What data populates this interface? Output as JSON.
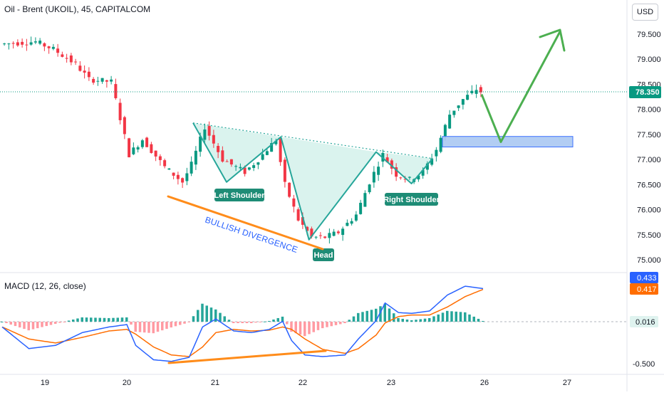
{
  "header": {
    "symbol_title": "Oil - Brent (UKOIL), 45, CAPITALCOM",
    "currency_button": "USD"
  },
  "colors": {
    "up": "#089981",
    "down": "#f23645",
    "pattern": "#26a69a",
    "pattern_fill": "#d4f1eb",
    "divergence": "#ff8c1a",
    "macd_line": "#2962ff",
    "signal_line": "#ff6d00",
    "hist_up": "#26a69a",
    "hist_down": "#ff9aa2",
    "zone_fill": "#aac8f2",
    "zone_border": "#2962ff",
    "arrow": "#4caf50",
    "annotation_text": "#2962ff"
  },
  "chart_data": [
    {
      "type": "candlestick",
      "title": "Oil - Brent (UKOIL), 45, CAPITALCOM",
      "x_ticks": [
        "19",
        "20",
        "21",
        "22",
        "23",
        "26",
        "27"
      ],
      "y_ticks": [
        "79.500",
        "79.000",
        "78.500",
        "78.000",
        "77.500",
        "77.000",
        "76.500",
        "76.000",
        "75.500",
        "75.000"
      ],
      "ylim": [
        74.85,
        79.97
      ],
      "last_price": 78.35,
      "last_price_label": "78.350",
      "price_path_approx": [
        [
          0,
          79.3
        ],
        [
          8,
          79.35
        ],
        [
          12,
          79.2
        ],
        [
          17,
          78.9
        ],
        [
          20,
          78.6
        ],
        [
          25,
          78.55
        ],
        [
          29,
          77.1
        ],
        [
          32,
          77.4
        ],
        [
          37,
          76.85
        ],
        [
          41,
          76.55
        ],
        [
          43,
          76.9
        ],
        [
          46,
          77.65
        ],
        [
          50,
          77.0
        ],
        [
          53,
          76.85
        ],
        [
          55,
          76.75
        ],
        [
          58,
          77.0
        ],
        [
          62,
          77.4
        ],
        [
          64,
          76.5
        ],
        [
          67,
          75.8
        ],
        [
          70,
          75.45
        ],
        [
          73,
          75.45
        ],
        [
          76,
          75.55
        ],
        [
          80,
          75.9
        ],
        [
          83,
          76.55
        ],
        [
          86,
          77.1
        ],
        [
          89,
          76.7
        ],
        [
          92,
          76.6
        ],
        [
          95,
          76.75
        ],
        [
          98,
          77.2
        ],
        [
          101,
          77.9
        ],
        [
          104,
          78.2
        ],
        [
          107,
          78.4
        ],
        [
          108,
          78.35
        ]
      ],
      "pattern": {
        "name": "Inverse Head and Shoulders",
        "neckline_label_points": [
          "Left Shoulder",
          "Head",
          "Right Shoulder"
        ],
        "left_shoulder_label": "Left Shoulder",
        "head_label": "Head",
        "right_shoulder_label": "Right Shoulder",
        "vertices": [
          {
            "x": 20.75,
            "y": 77.73
          },
          {
            "x": 21.13,
            "y": 76.55
          },
          {
            "x": 21.75,
            "y": 77.45
          },
          {
            "x": 22.07,
            "y": 75.4
          },
          {
            "x": 22.83,
            "y": 77.15
          },
          {
            "x": 23.23,
            "y": 76.52
          },
          {
            "x": 23.47,
            "y": 77.02
          }
        ]
      },
      "demand_zone": {
        "from": 77.25,
        "to": 77.46
      },
      "annotation": "BULLISH DIVERGENCE",
      "projection_path": [
        78.3,
        77.35,
        79.55
      ]
    },
    {
      "type": "line",
      "title": "MACD (12, 26, close)",
      "y_ticks": [
        "0.433",
        "0.417",
        "0.016",
        "-0.500"
      ],
      "ylim": [
        -0.55,
        0.55
      ],
      "macd_last": 0.433,
      "signal_last": 0.417,
      "histogram_last": 0.016,
      "series": [
        {
          "name": "MACD",
          "values_approx": [
            [
              0,
              -0.05
            ],
            [
              6,
              -0.32
            ],
            [
              12,
              -0.28
            ],
            [
              18,
              -0.12
            ],
            [
              24,
              -0.05
            ],
            [
              28,
              -0.02
            ],
            [
              30,
              -0.28
            ],
            [
              34,
              -0.46
            ],
            [
              38,
              -0.48
            ],
            [
              42,
              -0.43
            ],
            [
              45,
              -0.05
            ],
            [
              48,
              0.05
            ],
            [
              52,
              -0.1
            ],
            [
              56,
              -0.12
            ],
            [
              60,
              -0.08
            ],
            [
              63,
              0.02
            ],
            [
              65,
              -0.22
            ],
            [
              68,
              -0.4
            ],
            [
              72,
              -0.42
            ],
            [
              77,
              -0.4
            ],
            [
              80,
              -0.2
            ],
            [
              84,
              0.03
            ],
            [
              86,
              0.25
            ],
            [
              89,
              0.13
            ],
            [
              92,
              0.12
            ],
            [
              96,
              0.15
            ],
            [
              100,
              0.35
            ],
            [
              104,
              0.46
            ],
            [
              108,
              0.43
            ]
          ]
        },
        {
          "name": "Signal",
          "values_approx": [
            [
              0,
              -0.05
            ],
            [
              6,
              -0.2
            ],
            [
              12,
              -0.25
            ],
            [
              18,
              -0.18
            ],
            [
              24,
              -0.1
            ],
            [
              28,
              -0.08
            ],
            [
              30,
              -0.14
            ],
            [
              34,
              -0.3
            ],
            [
              38,
              -0.4
            ],
            [
              42,
              -0.42
            ],
            [
              45,
              -0.3
            ],
            [
              48,
              -0.12
            ],
            [
              52,
              -0.08
            ],
            [
              56,
              -0.1
            ],
            [
              60,
              -0.09
            ],
            [
              63,
              -0.05
            ],
            [
              65,
              -0.08
            ],
            [
              68,
              -0.2
            ],
            [
              72,
              -0.33
            ],
            [
              77,
              -0.38
            ],
            [
              80,
              -0.32
            ],
            [
              84,
              -0.15
            ],
            [
              86,
              0.0
            ],
            [
              89,
              0.08
            ],
            [
              92,
              0.1
            ],
            [
              96,
              0.1
            ],
            [
              100,
              0.2
            ],
            [
              104,
              0.33
            ],
            [
              108,
              0.42
            ]
          ]
        }
      ]
    }
  ]
}
